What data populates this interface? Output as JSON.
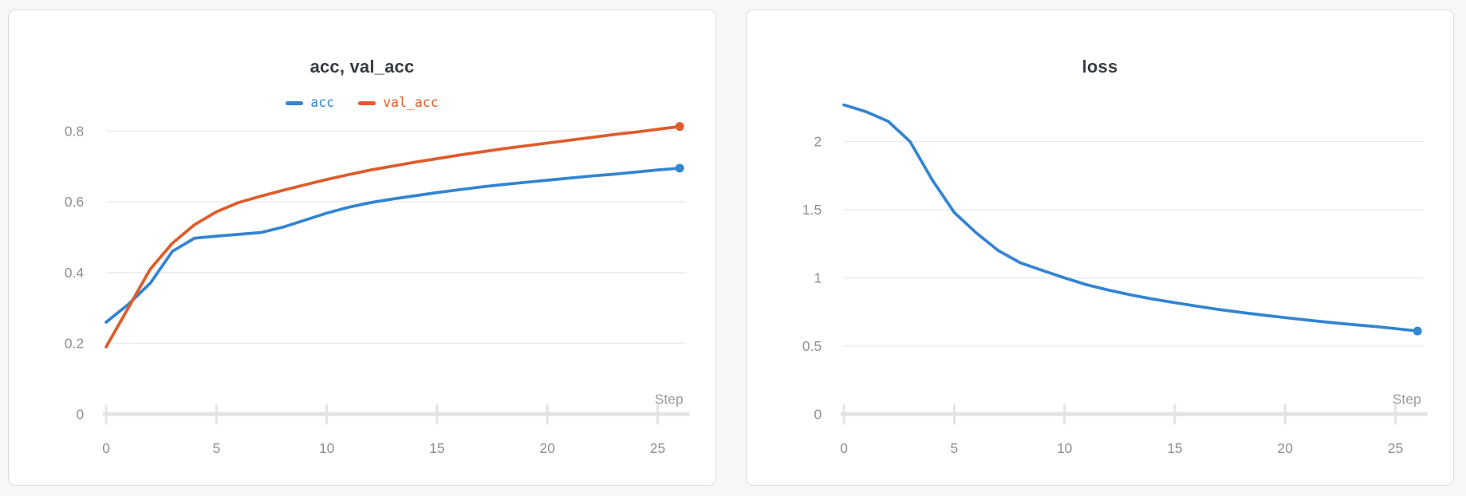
{
  "page": {
    "background": "#f7f7f8",
    "panel_border": "#dcdcdc"
  },
  "chart_data": [
    {
      "type": "line",
      "title": "acc, val_acc",
      "xlabel": "Step",
      "ylabel": "",
      "x": [
        0,
        1,
        2,
        3,
        4,
        5,
        6,
        7,
        8,
        9,
        10,
        11,
        12,
        13,
        14,
        15,
        16,
        17,
        18,
        19,
        20,
        21,
        22,
        23,
        24,
        25,
        26
      ],
      "series": [
        {
          "name": "acc",
          "color": "#3384d1",
          "values": [
            0.26,
            0.31,
            0.37,
            0.46,
            0.497,
            0.503,
            0.508,
            0.513,
            0.528,
            0.548,
            0.568,
            0.585,
            0.598,
            0.608,
            0.617,
            0.626,
            0.634,
            0.642,
            0.649,
            0.655,
            0.661,
            0.667,
            0.673,
            0.678,
            0.684,
            0.69,
            0.695
          ]
        },
        {
          "name": "val_acc",
          "color": "#de5c2c",
          "values": [
            0.19,
            0.3,
            0.41,
            0.483,
            0.535,
            0.572,
            0.598,
            0.616,
            0.632,
            0.648,
            0.663,
            0.677,
            0.69,
            0.701,
            0.712,
            0.722,
            0.732,
            0.741,
            0.75,
            0.758,
            0.766,
            0.774,
            0.782,
            0.79,
            0.797,
            0.805,
            0.813
          ]
        }
      ],
      "x_ticks": [
        0,
        5,
        10,
        15,
        20,
        25
      ],
      "y_ticks": [
        0,
        0.2,
        0.4,
        0.6,
        0.8
      ],
      "xlim": [
        0,
        26.45
      ],
      "ylim": [
        0,
        0.894
      ],
      "grid": true,
      "legend": true,
      "legend_position": "top",
      "end_marker": true
    },
    {
      "type": "line",
      "title": "loss",
      "xlabel": "Step",
      "ylabel": "",
      "x": [
        0,
        1,
        2,
        3,
        4,
        5,
        6,
        7,
        8,
        9,
        10,
        11,
        12,
        13,
        14,
        15,
        16,
        17,
        18,
        19,
        20,
        21,
        22,
        23,
        24,
        25,
        26
      ],
      "series": [
        {
          "name": "loss",
          "color": "#3384d1",
          "values": [
            2.27,
            2.22,
            2.15,
            2.0,
            1.72,
            1.48,
            1.33,
            1.2,
            1.11,
            1.055,
            1.0,
            0.95,
            0.91,
            0.875,
            0.845,
            0.818,
            0.792,
            0.768,
            0.747,
            0.727,
            0.708,
            0.69,
            0.673,
            0.658,
            0.644,
            0.628,
            0.61
          ]
        }
      ],
      "x_ticks": [
        0,
        5,
        10,
        15,
        20,
        25
      ],
      "y_ticks": [
        0,
        0.5,
        1,
        1.5,
        2
      ],
      "xlim": [
        0,
        26.45
      ],
      "ylim": [
        0,
        2.322
      ],
      "grid": true,
      "legend": false,
      "legend_position": "none",
      "end_marker": true
    }
  ],
  "style": {
    "gridline_color": "#ececec",
    "axis_color": "#e3e3e3",
    "tick_label_color": "#909090",
    "axis_label_color": "#9b9b9b",
    "title_color": "#373c41"
  }
}
